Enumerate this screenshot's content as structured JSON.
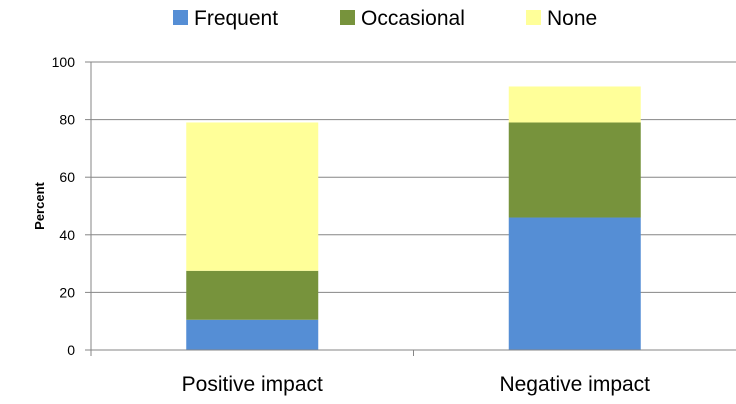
{
  "chart_data": {
    "type": "bar",
    "stacked": true,
    "title": "",
    "xlabel": "",
    "ylabel": "Percent",
    "ylim": [
      0,
      100
    ],
    "yticks": [
      0,
      20,
      40,
      60,
      80,
      100
    ],
    "categories": [
      "Positive impact",
      "Negative impact"
    ],
    "series": [
      {
        "name": "Frequent",
        "color": "#558ED5",
        "values": [
          10.5,
          46
        ]
      },
      {
        "name": "Occasional",
        "color": "#77933C",
        "values": [
          17,
          33
        ]
      },
      {
        "name": "None",
        "color": "#FFFF99",
        "values": [
          51.5,
          12.5
        ]
      }
    ],
    "legend": "top",
    "grid": true
  }
}
